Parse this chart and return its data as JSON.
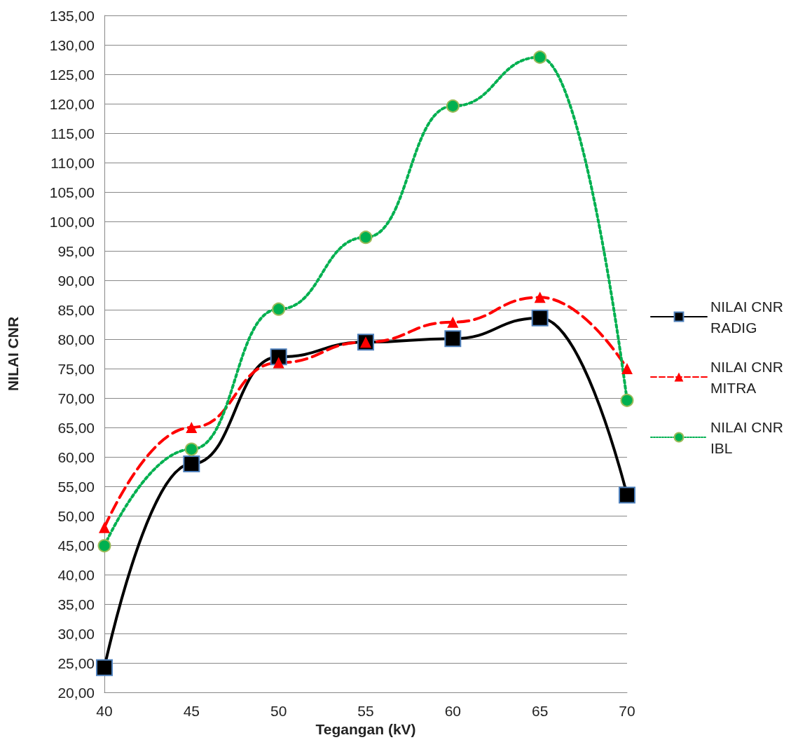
{
  "chart_data": {
    "type": "line",
    "xlabel": "Tegangan (kV)",
    "ylabel": "NILAI CNR",
    "x": [
      40,
      45,
      50,
      55,
      60,
      65,
      70
    ],
    "xlim": [
      40,
      70
    ],
    "xticks": [
      40,
      45,
      50,
      55,
      60,
      65,
      70
    ],
    "ylim": [
      20,
      135
    ],
    "yticks": [
      {
        "value": 20,
        "label": "20,00"
      },
      {
        "value": 25,
        "label": "25,00"
      },
      {
        "value": 30,
        "label": "30,00"
      },
      {
        "value": 35,
        "label": "35,00"
      },
      {
        "value": 40,
        "label": "40,00"
      },
      {
        "value": 45,
        "label": "45,00"
      },
      {
        "value": 50,
        "label": "50,00"
      },
      {
        "value": 55,
        "label": "55,00"
      },
      {
        "value": 60,
        "label": "60,00"
      },
      {
        "value": 65,
        "label": "65,00"
      },
      {
        "value": 70,
        "label": "70,00"
      },
      {
        "value": 75,
        "label": "75,00"
      },
      {
        "value": 80,
        "label": "80,00"
      },
      {
        "value": 85,
        "label": "85,00"
      },
      {
        "value": 90,
        "label": "90,00"
      },
      {
        "value": 95,
        "label": "95,00"
      },
      {
        "value": 100,
        "label": "100,00"
      },
      {
        "value": 105,
        "label": "105,00"
      },
      {
        "value": 110,
        "label": "110,00"
      },
      {
        "value": 115,
        "label": "115,00"
      },
      {
        "value": 120,
        "label": "120,00"
      },
      {
        "value": 125,
        "label": "125,00"
      },
      {
        "value": 130,
        "label": "130,00"
      },
      {
        "value": 135,
        "label": "135,00"
      }
    ],
    "grid": "y",
    "legend": "right",
    "series": [
      {
        "name": "NILAI CNR RADIG",
        "color": "#000000",
        "marker": "square",
        "line_style": "solid",
        "values": [
          24.2,
          58.8,
          77.0,
          79.5,
          80.1,
          83.6,
          53.5
        ]
      },
      {
        "name": "NILAI CNR MITRA",
        "color": "#ff0000",
        "marker": "triangle",
        "line_style": "dashed",
        "values": [
          48.0,
          65.0,
          76.0,
          79.5,
          82.9,
          87.1,
          75.0
        ]
      },
      {
        "name": "NILAI CNR IBL",
        "color": "#00b050",
        "marker": "circle",
        "line_style": "dotted",
        "values": [
          44.9,
          61.3,
          85.1,
          97.3,
          119.6,
          127.9,
          69.6
        ]
      }
    ]
  }
}
